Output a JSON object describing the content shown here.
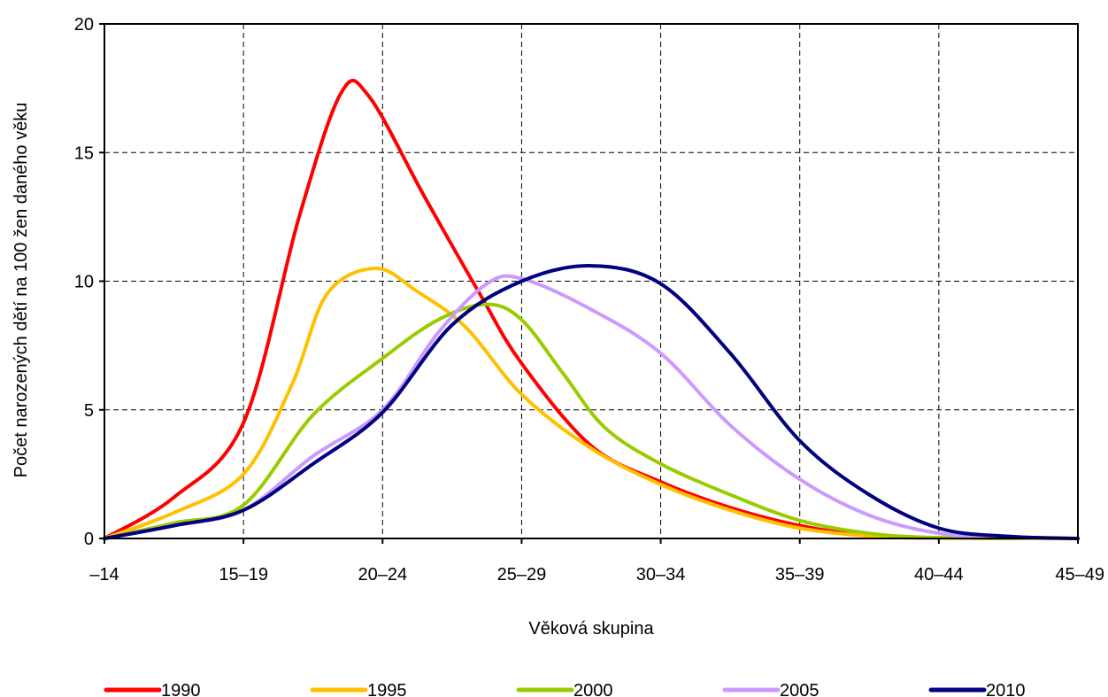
{
  "chart_data": {
    "type": "line",
    "xlabel": "Věková skupina",
    "ylabel": "Počet narozených dětí na 100 žen daného věku",
    "categories": [
      "–14",
      "15–19",
      "20–24",
      "25–29",
      "30–34",
      "35–39",
      "40–44",
      "45–49"
    ],
    "ylim": [
      0,
      20
    ],
    "yticks": [
      0,
      5,
      10,
      15,
      20
    ],
    "grid": true,
    "legend_position": "bottom",
    "series": [
      {
        "name": "1990",
        "color": "#ff0000",
        "points": [
          [
            0,
            0
          ],
          [
            0.5,
            1.6
          ],
          [
            1.0,
            4.5
          ],
          [
            1.4,
            12.5
          ],
          [
            1.7,
            17.3
          ],
          [
            1.9,
            17.2
          ],
          [
            2.3,
            13.3
          ],
          [
            2.7,
            9.5
          ],
          [
            3.0,
            6.8
          ],
          [
            3.5,
            3.6
          ],
          [
            4.0,
            2.2
          ],
          [
            4.5,
            1.2
          ],
          [
            5.0,
            0.5
          ],
          [
            5.5,
            0.1
          ],
          [
            6.0,
            0.02
          ],
          [
            7.0,
            0
          ]
        ]
      },
      {
        "name": "1995",
        "color": "#ffc000",
        "points": [
          [
            0,
            0
          ],
          [
            0.5,
            1.0
          ],
          [
            1.0,
            2.5
          ],
          [
            1.35,
            6.0
          ],
          [
            1.6,
            9.5
          ],
          [
            1.95,
            10.5
          ],
          [
            2.25,
            9.6
          ],
          [
            2.6,
            8.2
          ],
          [
            3.0,
            5.6
          ],
          [
            3.5,
            3.5
          ],
          [
            4.0,
            2.1
          ],
          [
            4.5,
            1.1
          ],
          [
            5.0,
            0.4
          ],
          [
            5.5,
            0.1
          ],
          [
            6.0,
            0.02
          ],
          [
            7.0,
            0
          ]
        ]
      },
      {
        "name": "2000",
        "color": "#99cc00",
        "points": [
          [
            0,
            0
          ],
          [
            0.5,
            0.6
          ],
          [
            1.0,
            1.3
          ],
          [
            1.5,
            4.8
          ],
          [
            2.0,
            7.0
          ],
          [
            2.4,
            8.5
          ],
          [
            2.75,
            9.1
          ],
          [
            3.0,
            8.5
          ],
          [
            3.3,
            6.4
          ],
          [
            3.6,
            4.3
          ],
          [
            4.0,
            2.9
          ],
          [
            4.5,
            1.7
          ],
          [
            5.0,
            0.7
          ],
          [
            5.5,
            0.2
          ],
          [
            6.0,
            0.03
          ],
          [
            7.0,
            0
          ]
        ]
      },
      {
        "name": "2005",
        "color": "#cc99ff",
        "points": [
          [
            0,
            0
          ],
          [
            0.5,
            0.5
          ],
          [
            1.0,
            1.1
          ],
          [
            1.5,
            3.2
          ],
          [
            2.0,
            5.0
          ],
          [
            2.4,
            8.0
          ],
          [
            2.75,
            9.9
          ],
          [
            3.0,
            10.1
          ],
          [
            3.5,
            8.9
          ],
          [
            4.0,
            7.2
          ],
          [
            4.5,
            4.4
          ],
          [
            5.0,
            2.3
          ],
          [
            5.5,
            0.9
          ],
          [
            6.0,
            0.2
          ],
          [
            6.5,
            0.03
          ],
          [
            7.0,
            0
          ]
        ]
      },
      {
        "name": "2010",
        "color": "#000080",
        "points": [
          [
            0,
            0
          ],
          [
            0.5,
            0.5
          ],
          [
            1.0,
            1.1
          ],
          [
            1.5,
            2.9
          ],
          [
            2.0,
            4.9
          ],
          [
            2.5,
            8.3
          ],
          [
            3.0,
            10.0
          ],
          [
            3.5,
            10.6
          ],
          [
            4.0,
            9.9
          ],
          [
            4.5,
            7.2
          ],
          [
            5.0,
            3.8
          ],
          [
            5.5,
            1.7
          ],
          [
            6.0,
            0.4
          ],
          [
            6.5,
            0.08
          ],
          [
            7.0,
            0
          ]
        ]
      }
    ]
  }
}
